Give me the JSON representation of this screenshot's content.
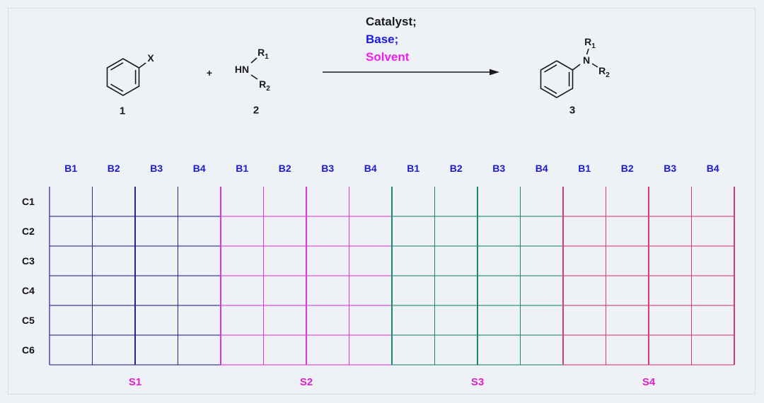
{
  "scheme": {
    "reactant1": {
      "substituent": "X",
      "label": "1"
    },
    "plus_sign": "+",
    "reactant2": {
      "hn": "HN",
      "r1": {
        "base": "R",
        "sub": "1"
      },
      "r2": {
        "base": "R",
        "sub": "2"
      },
      "label": "2"
    },
    "conditions": {
      "catalyst": "Catalyst;",
      "base": "Base;",
      "solvent": "Solvent"
    },
    "product": {
      "n": "N",
      "r1": {
        "base": "R",
        "sub": "1"
      },
      "r2": {
        "base": "R",
        "sub": "2"
      },
      "label": "3"
    }
  },
  "plate": {
    "col_headers": [
      "B1",
      "B2",
      "B3",
      "B4",
      "B1",
      "B2",
      "B3",
      "B4",
      "B1",
      "B2",
      "B3",
      "B4",
      "B1",
      "B2",
      "B3",
      "B4"
    ],
    "row_headers": [
      "C1",
      "C2",
      "C3",
      "C4",
      "C5",
      "C6"
    ],
    "sections": [
      {
        "label": "S1",
        "color": "#24248a"
      },
      {
        "label": "S2",
        "color": "#de36de"
      },
      {
        "label": "S3",
        "color": "#1b8a6b"
      },
      {
        "label": "S4",
        "color": "#d63b77"
      }
    ],
    "left_edge_color": "#7b68ee"
  },
  "colors": {
    "catalyst_text": "#1a1a1a",
    "base_text": "#1a1ae6",
    "solvent_text": "#ee1fee",
    "col_header": "#1a1ad6",
    "section_label": "#e020d0",
    "structure": "#1a1a1a"
  },
  "chart_data": {
    "type": "table",
    "title": "",
    "description": "96-well plate map: 4 solvent sections (S1-S4), each with base columns B1-B4, catalyst rows C1-C6; all wells empty",
    "columns_per_section": [
      "B1",
      "B2",
      "B3",
      "B4"
    ],
    "rows": [
      "C1",
      "C2",
      "C3",
      "C4",
      "C5",
      "C6"
    ],
    "sections": [
      "S1",
      "S2",
      "S3",
      "S4"
    ],
    "values": "empty grid (no data plotted in wells)"
  }
}
